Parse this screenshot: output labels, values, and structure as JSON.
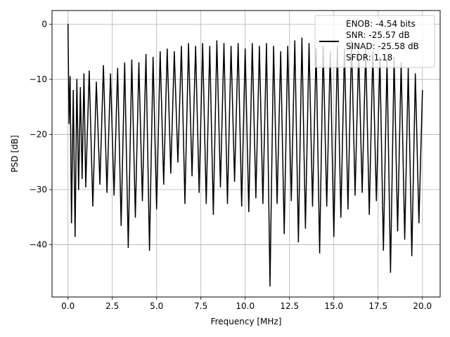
{
  "chart_data": {
    "type": "line",
    "title": "",
    "xlabel": "Frequency [MHz]",
    "ylabel": "PSD [dB]",
    "xlim": [
      -0.9,
      21.0
    ],
    "ylim": [
      -49.5,
      2.5
    ],
    "grid": true,
    "legend_position": "top-right",
    "xticks": [
      {
        "value": 0.0,
        "label": "0.0"
      },
      {
        "value": 2.5,
        "label": "2.5"
      },
      {
        "value": 5.0,
        "label": "5.0"
      },
      {
        "value": 7.5,
        "label": "7.5"
      },
      {
        "value": 10.0,
        "label": "10.0"
      },
      {
        "value": 12.5,
        "label": "12.5"
      },
      {
        "value": 15.0,
        "label": "15.0"
      },
      {
        "value": 17.5,
        "label": "17.5"
      },
      {
        "value": 20.0,
        "label": "20.0"
      }
    ],
    "yticks": [
      {
        "value": 0,
        "label": "0"
      },
      {
        "value": -10,
        "label": "−10"
      },
      {
        "value": -20,
        "label": "−20"
      },
      {
        "value": -30,
        "label": "−30"
      },
      {
        "value": -40,
        "label": "−40"
      }
    ],
    "series": [
      {
        "name": "ENOB: -4.54 bits\nSNR: -25.57 dB\nSINAD: -25.58 dB\nSFDR: 1.18",
        "color": "#000000",
        "x": [
          0.0,
          0.06,
          0.12,
          0.2,
          0.3,
          0.4,
          0.5,
          0.6,
          0.7,
          0.8,
          0.9,
          1.0,
          1.2,
          1.4,
          1.6,
          1.8,
          2.0,
          2.2,
          2.4,
          2.6,
          2.8,
          3.0,
          3.2,
          3.4,
          3.6,
          3.8,
          4.0,
          4.2,
          4.4,
          4.6,
          4.8,
          5.0,
          5.2,
          5.4,
          5.6,
          5.8,
          6.0,
          6.2,
          6.4,
          6.6,
          6.8,
          7.0,
          7.2,
          7.4,
          7.6,
          7.8,
          8.0,
          8.2,
          8.4,
          8.6,
          8.8,
          9.0,
          9.2,
          9.4,
          9.6,
          9.8,
          10.0,
          10.2,
          10.4,
          10.6,
          10.8,
          11.0,
          11.2,
          11.4,
          11.6,
          11.8,
          12.0,
          12.2,
          12.4,
          12.6,
          12.8,
          13.0,
          13.2,
          13.4,
          13.6,
          13.8,
          14.0,
          14.2,
          14.4,
          14.6,
          14.8,
          15.0,
          15.2,
          15.4,
          15.6,
          15.8,
          16.0,
          16.2,
          16.4,
          16.6,
          16.8,
          17.0,
          17.2,
          17.4,
          17.6,
          17.8,
          18.0,
          18.2,
          18.4,
          18.6,
          18.8,
          19.0,
          19.2,
          19.4,
          19.6,
          19.8,
          20.0
        ],
        "values": [
          0.0,
          -18.0,
          -9.5,
          -36.0,
          -12.0,
          -38.5,
          -10.0,
          -30.0,
          -11.5,
          -28.0,
          -9.0,
          -29.5,
          -8.5,
          -33.0,
          -10.5,
          -29.0,
          -7.5,
          -30.5,
          -9.0,
          -31.0,
          -8.0,
          -36.5,
          -7.0,
          -40.5,
          -6.5,
          -35.0,
          -7.0,
          -32.0,
          -5.5,
          -41.0,
          -6.0,
          -33.5,
          -5.0,
          -29.0,
          -4.5,
          -27.0,
          -5.0,
          -25.0,
          -4.0,
          -32.5,
          -3.5,
          -27.5,
          -4.0,
          -30.5,
          -3.5,
          -32.5,
          -4.0,
          -34.5,
          -3.0,
          -29.5,
          -3.5,
          -32.5,
          -4.0,
          -28.5,
          -3.5,
          -33.0,
          -4.5,
          -34.0,
          -3.5,
          -31.5,
          -4.0,
          -32.5,
          -3.5,
          -47.5,
          -4.0,
          -32.5,
          -5.0,
          -38.0,
          -4.0,
          -32.0,
          -3.0,
          -39.5,
          -2.5,
          -37.0,
          -3.5,
          -33.0,
          -4.5,
          -41.5,
          -4.0,
          -33.0,
          -5.0,
          -38.5,
          -4.0,
          -35.0,
          -4.5,
          -33.5,
          -3.0,
          -31.0,
          -5.0,
          -30.5,
          -4.5,
          -34.5,
          -5.0,
          -32.0,
          -6.0,
          -41.0,
          -6.5,
          -45.0,
          -6.0,
          -37.5,
          -7.0,
          -39.0,
          -8.0,
          -42.0,
          -9.0,
          -36.0,
          -12.0
        ]
      }
    ]
  }
}
